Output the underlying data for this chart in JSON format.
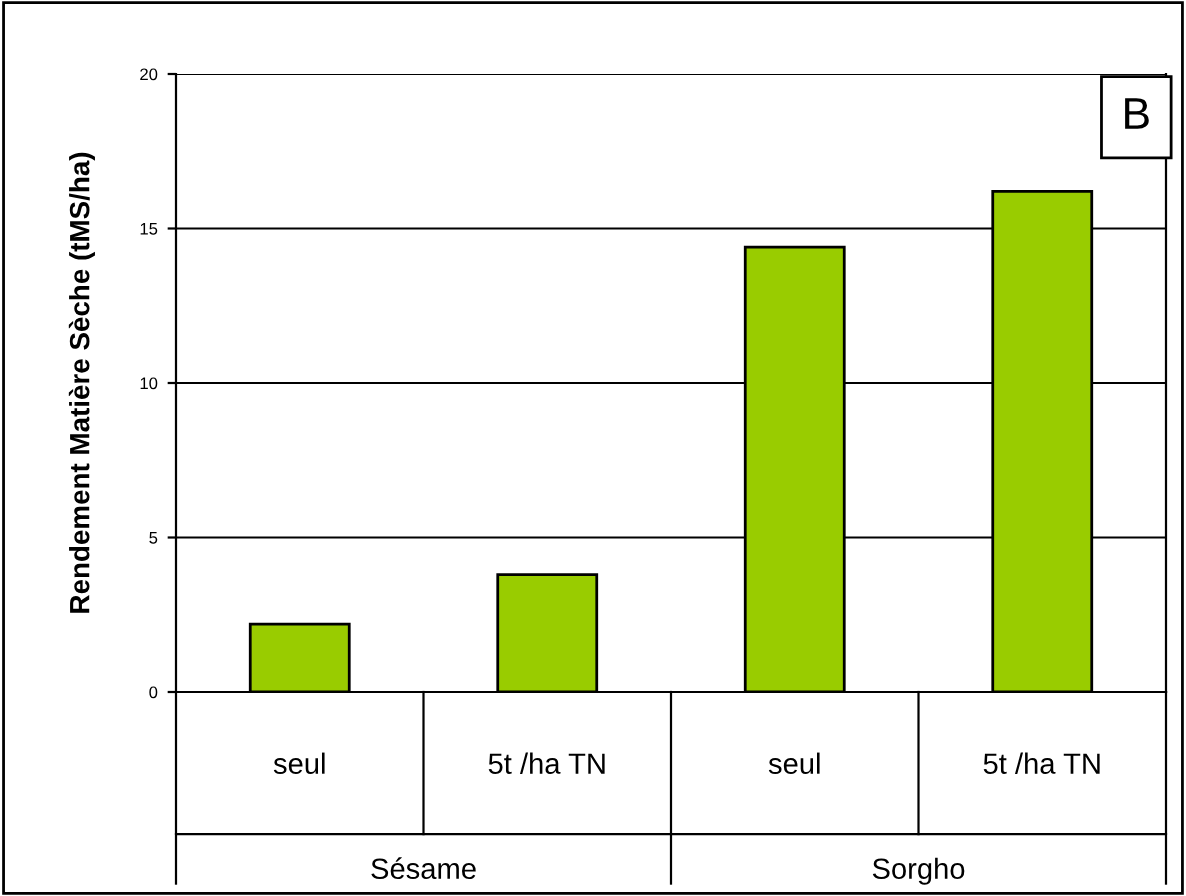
{
  "chart_data": {
    "type": "bar",
    "ylabel": "Rendement Matière Sèche (tMS/ha)",
    "categories": [
      "seul",
      "5t /ha TN",
      "seul",
      "5t /ha TN"
    ],
    "values": [
      2.2,
      3.8,
      14.4,
      16.2
    ],
    "color": "#99cc00",
    "ylim": [
      0,
      20
    ],
    "yticks": [
      0,
      5,
      10,
      15,
      20
    ],
    "grid": "y",
    "annotations": [
      "B",
      "Sésame",
      "Sorgho"
    ]
  }
}
